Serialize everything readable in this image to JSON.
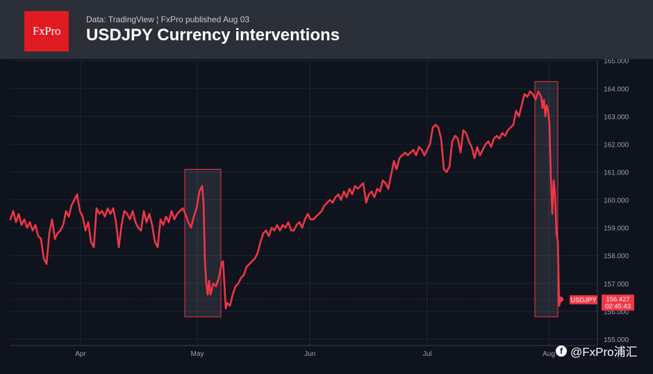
{
  "header": {
    "logo": "FxPro",
    "subtitle": "Data: TradingView  ¦ FxPro published Aug 03",
    "title": "USDJPY Currency interventions"
  },
  "watermark": {
    "icon": "facebook-icon",
    "text": "@FxPro浦汇"
  },
  "colors": {
    "background": "#0f131d",
    "header": "#2b2f38",
    "line": "#f23645",
    "logo": "#e11b22"
  },
  "chart_data": {
    "type": "line",
    "ylim": [
      154.75,
      165.05
    ],
    "yticks": [
      "155.000",
      "156.000",
      "157.000",
      "158.000",
      "159.000",
      "160.000",
      "161.000",
      "162.000",
      "163.000",
      "164.000",
      "165.000"
    ],
    "xticks": [
      "Apr",
      "May",
      "Jun",
      "Jul",
      "Aug"
    ],
    "grid": true,
    "series": [
      {
        "name": "USDJPY",
        "points": [
          [
            0,
            159.3
          ],
          [
            4,
            159.6
          ],
          [
            8,
            159.2
          ],
          [
            12,
            159.5
          ],
          [
            16,
            159.1
          ],
          [
            20,
            159.3
          ],
          [
            24,
            159.0
          ],
          [
            28,
            159.2
          ],
          [
            32,
            158.9
          ],
          [
            36,
            159.1
          ],
          [
            40,
            158.7
          ],
          [
            44,
            158.6
          ],
          [
            48,
            157.9
          ],
          [
            52,
            157.7
          ],
          [
            56,
            158.8
          ],
          [
            60,
            159.3
          ],
          [
            64,
            158.6
          ],
          [
            68,
            158.8
          ],
          [
            72,
            158.9
          ],
          [
            76,
            159.1
          ],
          [
            80,
            159.6
          ],
          [
            84,
            159.4
          ],
          [
            88,
            159.8
          ],
          [
            92,
            160.0
          ],
          [
            96,
            160.2
          ],
          [
            100,
            159.6
          ],
          [
            104,
            159.4
          ],
          [
            108,
            158.9
          ],
          [
            112,
            159.2
          ],
          [
            116,
            158.5
          ],
          [
            120,
            158.3
          ],
          [
            124,
            159.7
          ],
          [
            128,
            159.5
          ],
          [
            132,
            159.6
          ],
          [
            136,
            159.4
          ],
          [
            140,
            159.7
          ],
          [
            144,
            159.5
          ],
          [
            148,
            159.7
          ],
          [
            152,
            159.2
          ],
          [
            156,
            158.3
          ],
          [
            160,
            159.1
          ],
          [
            164,
            159.6
          ],
          [
            168,
            159.5
          ],
          [
            172,
            159.3
          ],
          [
            176,
            159.6
          ],
          [
            180,
            159.2
          ],
          [
            184,
            159.0
          ],
          [
            188,
            158.9
          ],
          [
            192,
            159.6
          ],
          [
            196,
            159.2
          ],
          [
            200,
            159.5
          ],
          [
            204,
            159.1
          ],
          [
            208,
            158.5
          ],
          [
            212,
            158.3
          ],
          [
            216,
            159.3
          ],
          [
            220,
            159.1
          ],
          [
            224,
            159.4
          ],
          [
            228,
            159.2
          ],
          [
            232,
            159.6
          ],
          [
            236,
            159.3
          ],
          [
            240,
            159.5
          ],
          [
            244,
            159.6
          ],
          [
            248,
            159.7
          ],
          [
            252,
            159.5
          ],
          [
            256,
            159.2
          ],
          [
            260,
            159.0
          ],
          [
            264,
            159.4
          ],
          [
            268,
            159.7
          ],
          [
            272,
            160.3
          ],
          [
            276,
            160.5
          ],
          [
            278,
            159.9
          ],
          [
            280,
            157.8
          ],
          [
            282,
            157.0
          ],
          [
            284,
            156.6
          ],
          [
            286,
            157.1
          ],
          [
            288,
            156.6
          ],
          [
            292,
            157.0
          ],
          [
            296,
            156.9
          ],
          [
            300,
            157.2
          ],
          [
            304,
            157.7
          ],
          [
            306,
            157.8
          ],
          [
            308,
            157.0
          ],
          [
            310,
            156.1
          ],
          [
            312,
            156.3
          ],
          [
            316,
            156.2
          ],
          [
            320,
            156.6
          ],
          [
            324,
            156.9
          ],
          [
            328,
            157.0
          ],
          [
            332,
            157.2
          ],
          [
            336,
            157.3
          ],
          [
            340,
            157.6
          ],
          [
            344,
            157.7
          ],
          [
            348,
            157.8
          ],
          [
            352,
            157.9
          ],
          [
            356,
            158.1
          ],
          [
            360,
            158.5
          ],
          [
            364,
            158.8
          ],
          [
            368,
            158.9
          ],
          [
            372,
            158.7
          ],
          [
            376,
            159.0
          ],
          [
            380,
            158.9
          ],
          [
            384,
            159.1
          ],
          [
            388,
            158.9
          ],
          [
            392,
            159.1
          ],
          [
            396,
            159.0
          ],
          [
            400,
            159.2
          ],
          [
            404,
            158.9
          ],
          [
            408,
            158.9
          ],
          [
            412,
            159.1
          ],
          [
            416,
            159.2
          ],
          [
            420,
            159.0
          ],
          [
            424,
            159.3
          ],
          [
            428,
            159.5
          ],
          [
            432,
            159.3
          ],
          [
            436,
            159.3
          ],
          [
            440,
            159.4
          ],
          [
            444,
            159.5
          ],
          [
            448,
            159.6
          ],
          [
            452,
            159.8
          ],
          [
            456,
            159.9
          ],
          [
            460,
            160.0
          ],
          [
            464,
            159.9
          ],
          [
            468,
            160.1
          ],
          [
            472,
            160.2
          ],
          [
            476,
            160.0
          ],
          [
            480,
            160.3
          ],
          [
            484,
            160.1
          ],
          [
            488,
            160.4
          ],
          [
            492,
            160.2
          ],
          [
            496,
            160.5
          ],
          [
            500,
            160.4
          ],
          [
            504,
            160.5
          ],
          [
            508,
            160.6
          ],
          [
            512,
            159.9
          ],
          [
            516,
            160.2
          ],
          [
            520,
            160.3
          ],
          [
            524,
            160.1
          ],
          [
            528,
            160.4
          ],
          [
            532,
            160.3
          ],
          [
            536,
            160.7
          ],
          [
            540,
            160.6
          ],
          [
            544,
            160.4
          ],
          [
            548,
            160.9
          ],
          [
            552,
            161.4
          ],
          [
            556,
            161.1
          ],
          [
            560,
            161.5
          ],
          [
            564,
            161.6
          ],
          [
            568,
            161.7
          ],
          [
            572,
            161.6
          ],
          [
            576,
            161.7
          ],
          [
            580,
            161.8
          ],
          [
            584,
            161.6
          ],
          [
            588,
            161.9
          ],
          [
            592,
            161.8
          ],
          [
            596,
            161.6
          ],
          [
            600,
            161.8
          ],
          [
            604,
            162.0
          ],
          [
            608,
            162.6
          ],
          [
            612,
            162.7
          ],
          [
            616,
            162.6
          ],
          [
            620,
            162.2
          ],
          [
            624,
            161.1
          ],
          [
            628,
            161.0
          ],
          [
            632,
            161.2
          ],
          [
            636,
            162.1
          ],
          [
            640,
            162.3
          ],
          [
            644,
            162.2
          ],
          [
            648,
            161.7
          ],
          [
            652,
            162.5
          ],
          [
            656,
            162.4
          ],
          [
            660,
            162.1
          ],
          [
            664,
            161.9
          ],
          [
            668,
            161.5
          ],
          [
            672,
            161.9
          ],
          [
            676,
            161.6
          ],
          [
            680,
            161.8
          ],
          [
            684,
            162.0
          ],
          [
            688,
            162.1
          ],
          [
            692,
            161.9
          ],
          [
            696,
            162.2
          ],
          [
            700,
            162.3
          ],
          [
            704,
            162.2
          ],
          [
            708,
            162.4
          ],
          [
            712,
            162.3
          ],
          [
            716,
            162.5
          ],
          [
            720,
            162.6
          ],
          [
            724,
            162.7
          ],
          [
            728,
            163.2
          ],
          [
            732,
            163.0
          ],
          [
            736,
            163.4
          ],
          [
            740,
            163.8
          ],
          [
            744,
            163.7
          ],
          [
            748,
            163.9
          ],
          [
            752,
            163.8
          ],
          [
            756,
            163.6
          ],
          [
            760,
            163.9
          ],
          [
            764,
            163.7
          ],
          [
            766,
            163.3
          ],
          [
            768,
            163.6
          ],
          [
            770,
            163.0
          ],
          [
            772,
            163.4
          ],
          [
            774,
            163.2
          ],
          [
            776,
            162.7
          ],
          [
            778,
            160.8
          ],
          [
            780,
            159.5
          ],
          [
            782,
            160.7
          ],
          [
            784,
            160.2
          ],
          [
            786,
            158.8
          ],
          [
            788,
            158.5
          ],
          [
            790,
            156.2
          ],
          [
            792,
            156.43
          ]
        ]
      }
    ],
    "price_label": {
      "name": "USDJPY",
      "value": "156.427",
      "time": "02:45:43"
    },
    "intervention_zones": [
      {
        "x_start": 266,
        "x_end": 318,
        "y_low": 155.8,
        "y_high": 161.1
      },
      {
        "x_start": 770,
        "x_end": 803,
        "y_low": 155.8,
        "y_high": 164.25
      }
    ]
  }
}
